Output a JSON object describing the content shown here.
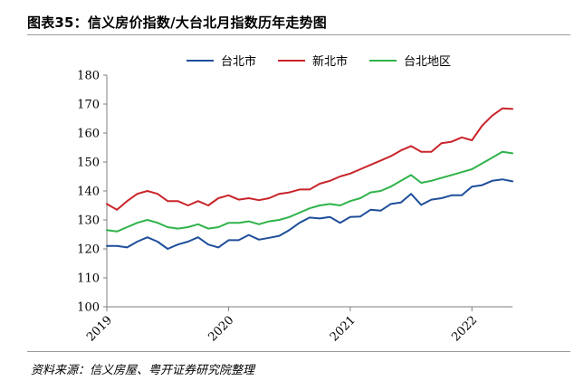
{
  "figure_title": "图表35：信义房价指数/大台北月指数历年走势图",
  "source_note": "资料来源：信义房屋、粤开证券研究院整理",
  "chart_data": {
    "type": "line",
    "title": "",
    "xlabel": "",
    "ylabel": "",
    "ylim": [
      100,
      180
    ],
    "yticks": [
      "100",
      "110",
      "120",
      "130",
      "140",
      "150",
      "160",
      "170",
      "180"
    ],
    "xticks": [
      "2019",
      "2020",
      "2021",
      "2022"
    ],
    "grid": false,
    "legend_position": "top-center",
    "x": [
      "2019-01",
      "2019-02",
      "2019-03",
      "2019-04",
      "2019-05",
      "2019-06",
      "2019-07",
      "2019-08",
      "2019-09",
      "2019-10",
      "2019-11",
      "2019-12",
      "2020-01",
      "2020-02",
      "2020-03",
      "2020-04",
      "2020-05",
      "2020-06",
      "2020-07",
      "2020-08",
      "2020-09",
      "2020-10",
      "2020-11",
      "2020-12",
      "2021-01",
      "2021-02",
      "2021-03",
      "2021-04",
      "2021-05",
      "2021-06",
      "2021-07",
      "2021-08",
      "2021-09",
      "2021-10",
      "2021-11",
      "2021-12",
      "2022-01",
      "2022-02",
      "2022-03",
      "2022-04",
      "2022-05"
    ],
    "series": [
      {
        "name": "台北市",
        "color": "#1f4e9a",
        "values": [
          121.0,
          121.0,
          120.5,
          122.5,
          124.0,
          122.5,
          120.0,
          121.5,
          122.5,
          124.0,
          121.5,
          120.5,
          123.0,
          123.0,
          124.8,
          123.2,
          123.8,
          124.5,
          126.5,
          129.0,
          130.8,
          130.5,
          131.0,
          129.0,
          131.0,
          131.2,
          133.5,
          133.2,
          135.5,
          136.0,
          139.0,
          135.2,
          137.0,
          137.5,
          138.5,
          138.5,
          141.5,
          142.0,
          143.5,
          144.0,
          143.3
        ]
      },
      {
        "name": "新北市",
        "color": "#c8252b",
        "values": [
          135.5,
          133.5,
          136.5,
          139.0,
          140.0,
          139.0,
          136.5,
          136.5,
          135.0,
          136.5,
          135.0,
          137.5,
          138.5,
          137.0,
          137.5,
          136.8,
          137.5,
          139.0,
          139.5,
          140.5,
          140.5,
          142.5,
          143.5,
          145.0,
          146.0,
          147.5,
          149.0,
          150.5,
          152.0,
          154.0,
          155.5,
          153.5,
          153.5,
          156.5,
          157.0,
          158.5,
          157.5,
          162.5,
          166.0,
          168.5,
          168.3
        ]
      },
      {
        "name": "台北地区",
        "color": "#2fb34a",
        "values": [
          126.5,
          126.0,
          127.5,
          129.0,
          130.0,
          129.0,
          127.5,
          127.0,
          127.5,
          128.5,
          127.0,
          127.5,
          129.0,
          129.0,
          129.5,
          128.5,
          129.5,
          130.0,
          131.0,
          132.5,
          134.0,
          135.0,
          135.5,
          135.0,
          136.5,
          137.5,
          139.5,
          140.0,
          141.5,
          143.5,
          145.5,
          142.8,
          143.5,
          144.5,
          145.5,
          146.5,
          147.5,
          149.5,
          151.5,
          153.5,
          153.0
        ]
      }
    ]
  }
}
